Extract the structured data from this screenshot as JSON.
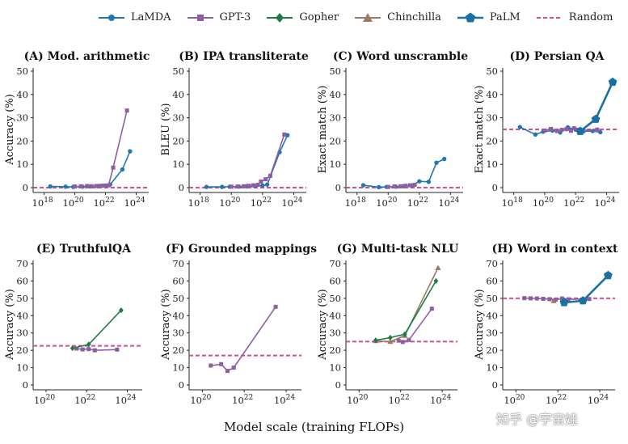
{
  "legend": [
    {
      "name": "LaMDA",
      "color": "#1f77b4",
      "marker": "circle",
      "dashed": false
    },
    {
      "name": "GPT-3",
      "color": "#8e5ea2",
      "marker": "square",
      "dashed": false
    },
    {
      "name": "Gopher",
      "color": "#1e7b45",
      "marker": "diamond",
      "dashed": false
    },
    {
      "name": "Chinchilla",
      "color": "#9c7a64",
      "marker": "triangle",
      "dashed": false
    },
    {
      "name": "PaLM",
      "color": "#1a6fa3",
      "marker": "pentagon",
      "dashed": false
    },
    {
      "name": "Random",
      "color": "#d64b8e",
      "marker": "none",
      "dashed": true
    }
  ],
  "xlabel": "Model scale (training FLOPs)",
  "watermark": "知乎 @宇宙娃",
  "chart_data": [
    {
      "type": "line",
      "panel": "A",
      "title": "(A) Mod. arithmetic",
      "ylabel": "Accuracy (%)",
      "xscale": "log",
      "xlim": [
        17.6,
        24.5
      ],
      "xticks": [
        18,
        20,
        22,
        24
      ],
      "xticklabels": [
        "10^18",
        "10^20",
        "10^22",
        "10^24"
      ],
      "ylim": [
        0,
        50
      ],
      "yticks": [
        0,
        10,
        20,
        30,
        40,
        50
      ],
      "random": 0,
      "series": [
        {
          "name": "LaMDA",
          "x": [
            18.4,
            19.4,
            19.9,
            20.5,
            21.0,
            21.5,
            22.0,
            22.3,
            23.1,
            23.6
          ],
          "y": [
            0.5,
            0.4,
            0.3,
            0.4,
            0.5,
            0.6,
            0.9,
            1.3,
            7.8,
            15.6
          ]
        },
        {
          "name": "GPT-3",
          "x": [
            20.0,
            20.4,
            20.8,
            21.1,
            21.4,
            21.7,
            21.9,
            22.2,
            22.5,
            23.4
          ],
          "y": [
            0.5,
            0.6,
            0.7,
            0.6,
            0.7,
            0.8,
            0.9,
            1.0,
            8.6,
            33.1
          ]
        }
      ]
    },
    {
      "type": "line",
      "panel": "B",
      "title": "(B) IPA transliterate",
      "ylabel": "BLEU (%)",
      "xscale": "log",
      "xlim": [
        17.6,
        24.5
      ],
      "xticks": [
        18,
        20,
        22,
        24
      ],
      "xticklabels": [
        "10^18",
        "10^20",
        "10^22",
        "10^24"
      ],
      "ylim": [
        0,
        50
      ],
      "yticks": [
        0,
        10,
        20,
        30,
        40,
        50
      ],
      "random": 0,
      "series": [
        {
          "name": "LaMDA",
          "x": [
            18.4,
            19.4,
            19.9,
            20.5,
            21.0,
            21.5,
            22.0,
            22.3,
            23.1,
            23.6
          ],
          "y": [
            0.3,
            0.3,
            0.4,
            0.4,
            0.5,
            0.7,
            0.9,
            1.3,
            15.2,
            22.5
          ]
        },
        {
          "name": "GPT-3",
          "x": [
            20.0,
            20.4,
            20.8,
            21.1,
            21.4,
            21.7,
            21.9,
            22.2,
            22.5,
            23.4
          ],
          "y": [
            0.4,
            0.5,
            0.6,
            0.8,
            1.0,
            1.2,
            2.6,
            3.6,
            5.1,
            22.8
          ]
        }
      ]
    },
    {
      "type": "line",
      "panel": "C",
      "title": "(C) Word unscramble",
      "ylabel": "Exact match (%)",
      "xscale": "log",
      "xlim": [
        17.6,
        24.5
      ],
      "xticks": [
        18,
        20,
        22,
        24
      ],
      "xticklabels": [
        "10^18",
        "10^20",
        "10^22",
        "10^24"
      ],
      "ylim": [
        0,
        50
      ],
      "yticks": [
        0,
        10,
        20,
        30,
        40,
        50
      ],
      "random": 0,
      "series": [
        {
          "name": "LaMDA",
          "x": [
            18.4,
            19.4,
            19.9,
            20.5,
            21.0,
            21.5,
            22.0,
            22.6,
            23.1,
            23.6
          ],
          "y": [
            1.0,
            0.2,
            0.3,
            0.4,
            0.6,
            0.9,
            2.7,
            2.5,
            10.7,
            12.3
          ]
        },
        {
          "name": "GPT-3",
          "x": [
            20.0,
            20.4,
            20.8,
            21.1,
            21.4,
            21.7
          ],
          "y": [
            0.3,
            0.5,
            0.6,
            0.8,
            1.0,
            1.2
          ]
        }
      ]
    },
    {
      "type": "line",
      "panel": "D",
      "title": "(D) Persian QA",
      "ylabel": "Exact match (%)",
      "xscale": "log",
      "xlim": [
        17.6,
        24.5
      ],
      "xticks": [
        18,
        20,
        22,
        24
      ],
      "xticklabels": [
        "10^18",
        "10^20",
        "10^22",
        "10^24"
      ],
      "ylim": [
        0,
        50
      ],
      "yticks": [
        0,
        10,
        20,
        30,
        40,
        50
      ],
      "random": 25,
      "series": [
        {
          "name": "LaMDA",
          "x": [
            18.4,
            19.4,
            19.9,
            20.5,
            21.0,
            21.5,
            22.0,
            22.5,
            23.1,
            23.6
          ],
          "y": [
            26.0,
            22.8,
            24.0,
            24.5,
            23.7,
            25.9,
            24.9,
            24.1,
            24.3,
            23.8
          ]
        },
        {
          "name": "GPT-3",
          "x": [
            20.0,
            20.4,
            20.8,
            21.1,
            21.4,
            21.7,
            21.9,
            22.2,
            22.5,
            23.4
          ],
          "y": [
            24.5,
            25.2,
            24.3,
            24.8,
            25.1,
            24.4,
            25.5,
            24.8,
            24.6,
            24.9
          ]
        },
        {
          "name": "PaLM",
          "x": [
            22.3,
            23.3,
            24.4
          ],
          "y": [
            24.2,
            29.4,
            45.3
          ]
        }
      ]
    },
    {
      "type": "line",
      "panel": "E",
      "title": "(E) TruthfulQA",
      "ylabel": "Accuracy (%)",
      "xscale": "log",
      "xlim": [
        19.6,
        24.5
      ],
      "xticks": [
        20,
        22,
        24
      ],
      "xticklabels": [
        "10^20",
        "10^22",
        "10^24"
      ],
      "ylim": [
        0,
        70
      ],
      "yticks": [
        0,
        10,
        20,
        30,
        40,
        50,
        60,
        70
      ],
      "random": 22.6,
      "series": [
        {
          "name": "GPT-3",
          "x": [
            21.5,
            21.8,
            22.1,
            22.4,
            23.5
          ],
          "y": [
            21.0,
            20.5,
            20.7,
            20.0,
            20.4
          ]
        },
        {
          "name": "Gopher",
          "x": [
            21.3,
            22.1,
            23.7
          ],
          "y": [
            21.2,
            23.4,
            43.1
          ]
        }
      ]
    },
    {
      "type": "line",
      "panel": "F",
      "title": "(F) Grounded mappings",
      "ylabel": "Accuracy (%)",
      "xscale": "log",
      "xlim": [
        19.6,
        24.5
      ],
      "xticks": [
        20,
        22,
        24
      ],
      "xticklabels": [
        "10^20",
        "10^22",
        "10^24"
      ],
      "ylim": [
        0,
        70
      ],
      "yticks": [
        0,
        10,
        20,
        30,
        40,
        50,
        60,
        70
      ],
      "random": 17,
      "series": [
        {
          "name": "GPT-3",
          "x": [
            20.4,
            20.9,
            21.2,
            21.5,
            23.5
          ],
          "y": [
            11.2,
            12.0,
            8.1,
            10.0,
            45.1
          ]
        }
      ]
    },
    {
      "type": "line",
      "panel": "G",
      "title": "(G) Multi-task NLU",
      "ylabel": "Accuracy (%)",
      "xscale": "log",
      "xlim": [
        19.6,
        24.5
      ],
      "xticks": [
        20,
        22,
        24
      ],
      "xticklabels": [
        "10^20",
        "10^22",
        "10^24"
      ],
      "ylim": [
        0,
        70
      ],
      "yticks": [
        0,
        10,
        20,
        30,
        40,
        50,
        60,
        70
      ],
      "random": 25,
      "series": [
        {
          "name": "GPT-3",
          "x": [
            21.9,
            22.1,
            22.4,
            23.5
          ],
          "y": [
            25.6,
            24.8,
            26.0,
            44.0
          ]
        },
        {
          "name": "Chinchilla",
          "x": [
            20.8,
            21.5,
            22.2,
            23.8
          ],
          "y": [
            25.5,
            25.0,
            28.5,
            67.6
          ]
        },
        {
          "name": "Gopher",
          "x": [
            20.8,
            21.5,
            22.2,
            23.7
          ],
          "y": [
            25.8,
            27.3,
            29.3,
            60.0
          ]
        }
      ]
    },
    {
      "type": "line",
      "panel": "H",
      "title": "(H) Word in context",
      "ylabel": "Accuracy (%)",
      "xscale": "log",
      "xlim": [
        19.6,
        24.5
      ],
      "xticks": [
        20,
        22,
        24
      ],
      "xticklabels": [
        "10^20",
        "10^22",
        "10^24"
      ],
      "ylim": [
        0,
        70
      ],
      "yticks": [
        0,
        10,
        20,
        30,
        40,
        50,
        60,
        70
      ],
      "random": 50,
      "series": [
        {
          "name": "GPT-3",
          "x": [
            20.4,
            20.7,
            21.0,
            21.3,
            21.6,
            21.9,
            22.2,
            22.5,
            23.5
          ],
          "y": [
            50.1,
            50.0,
            49.9,
            49.7,
            49.5,
            49.2,
            49.9,
            49.4,
            49.6
          ]
        },
        {
          "name": "Chinchilla",
          "x": [
            21.8
          ],
          "y": [
            48.6
          ]
        },
        {
          "name": "PaLM",
          "x": [
            22.3,
            23.2,
            24.4
          ],
          "y": [
            47.6,
            48.6,
            63.2
          ]
        }
      ]
    }
  ]
}
